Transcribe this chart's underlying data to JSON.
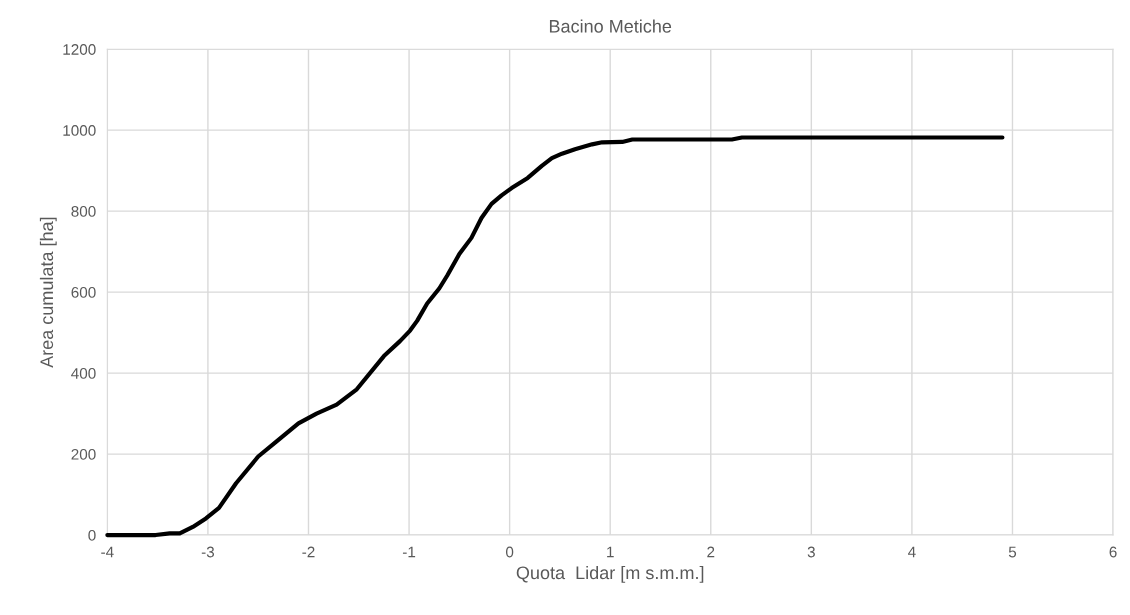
{
  "chart_data": {
    "type": "line",
    "title": "Bacino Metiche",
    "xlabel": "Quota  Lidar [m s.m.m.]",
    "ylabel": "Area cumulata [ha]",
    "xlim": [
      -4,
      6
    ],
    "xticks": [
      -4,
      -3,
      -2,
      -1,
      0,
      1,
      2,
      3,
      4,
      5,
      6
    ],
    "ylim": [
      0,
      1200
    ],
    "yticks": [
      0,
      200,
      400,
      600,
      800,
      1000,
      1200
    ],
    "grid": true,
    "marker": "none",
    "line_style": "solid",
    "series": [
      {
        "color": "#000000",
        "x": [
          -4,
          -3.52,
          -3.38,
          -3.28,
          -3.15,
          -3.02,
          -2.89,
          -2.72,
          -2.5,
          -2.32,
          -2.1,
          -1.92,
          -1.72,
          -1.52,
          -1.25,
          -1.09,
          -0.99,
          -0.92,
          -0.82,
          -0.7,
          -0.62,
          -0.5,
          -0.38,
          -0.28,
          -0.18,
          -0.08,
          0.02,
          0.18,
          0.32,
          0.42,
          0.52,
          0.65,
          0.82,
          0.92,
          1.12,
          1.22,
          2.21,
          2.31,
          4.9
        ],
        "values": [
          0,
          0,
          4,
          4,
          20,
          41,
          67,
          128,
          194,
          231,
          276,
          300,
          322,
          360,
          442,
          479,
          505,
          529,
          572,
          609,
          641,
          694,
          734,
          783,
          818,
          839,
          857,
          882,
          912,
          931,
          942,
          953,
          965,
          970,
          971,
          977,
          977,
          982,
          982
        ]
      }
    ]
  }
}
